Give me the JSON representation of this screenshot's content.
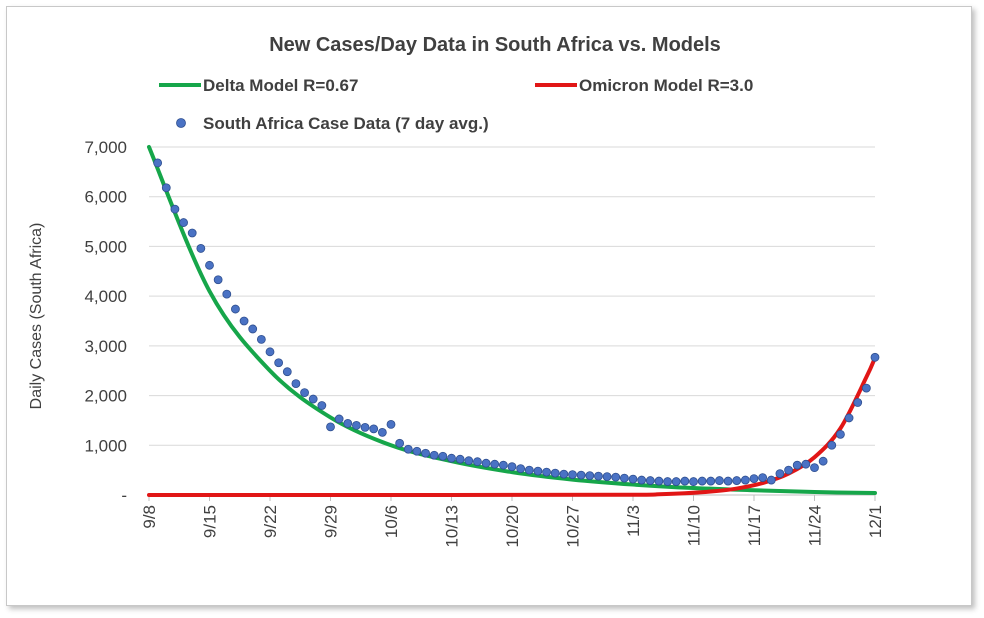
{
  "chart_data": {
    "type": "line",
    "title": "New Cases/Day Data in South Africa vs. Models",
    "xlabel": "",
    "ylabel": "Daily Cases (South Africa)",
    "ylim": [
      0,
      7000
    ],
    "yticks": [
      {
        "value": 0,
        "label": "-"
      },
      {
        "value": 1000,
        "label": "1,000"
      },
      {
        "value": 2000,
        "label": "2,000"
      },
      {
        "value": 3000,
        "label": "3,000"
      },
      {
        "value": 4000,
        "label": "4,000"
      },
      {
        "value": 5000,
        "label": "5,000"
      },
      {
        "value": 6000,
        "label": "6,000"
      },
      {
        "value": 7000,
        "label": "7,000"
      }
    ],
    "xlim": [
      "2021-09-08",
      "2021-12-01"
    ],
    "xticks": [
      {
        "value": "2021-09-08",
        "label": "9/8"
      },
      {
        "value": "2021-09-15",
        "label": "9/15"
      },
      {
        "value": "2021-09-22",
        "label": "9/22"
      },
      {
        "value": "2021-09-29",
        "label": "9/29"
      },
      {
        "value": "2021-10-06",
        "label": "10/6"
      },
      {
        "value": "2021-10-13",
        "label": "10/13"
      },
      {
        "value": "2021-10-20",
        "label": "10/20"
      },
      {
        "value": "2021-10-27",
        "label": "10/27"
      },
      {
        "value": "2021-11-03",
        "label": "11/3"
      },
      {
        "value": "2021-11-10",
        "label": "11/10"
      },
      {
        "value": "2021-11-17",
        "label": "11/17"
      },
      {
        "value": "2021-11-24",
        "label": "11/24"
      },
      {
        "value": "2021-12-01",
        "label": "12/1"
      }
    ],
    "grid": true,
    "legend_position": "top",
    "series": [
      {
        "name": "Delta Model R=0.67",
        "kind": "line",
        "color": "#16a64a",
        "x": [
          "2021-09-08",
          "2021-09-15",
          "2021-09-22",
          "2021-09-29",
          "2021-10-06",
          "2021-10-13",
          "2021-10-20",
          "2021-10-27",
          "2021-11-03",
          "2021-11-10",
          "2021-11-17",
          "2021-11-24",
          "2021-12-01"
        ],
        "y": [
          7000,
          4100,
          2500,
          1560,
          1000,
          680,
          460,
          310,
          210,
          140,
          95,
          60,
          40
        ]
      },
      {
        "name": "Omicron Model R=3.0",
        "kind": "line",
        "color": "#e11616",
        "x": [
          "2021-09-08",
          "2021-10-13",
          "2021-11-03",
          "2021-11-06",
          "2021-11-09",
          "2021-11-12",
          "2021-11-15",
          "2021-11-18",
          "2021-11-21",
          "2021-11-24",
          "2021-11-27",
          "2021-11-30",
          "2021-12-01"
        ],
        "y": [
          0,
          0,
          5,
          15,
          35,
          70,
          130,
          240,
          430,
          760,
          1340,
          2370,
          2760
        ]
      },
      {
        "name": "South Africa Case Data (7 day avg.)",
        "kind": "scatter",
        "color": "#4a72c4",
        "x": [
          "2021-09-09",
          "2021-09-10",
          "2021-09-11",
          "2021-09-12",
          "2021-09-13",
          "2021-09-14",
          "2021-09-15",
          "2021-09-16",
          "2021-09-17",
          "2021-09-18",
          "2021-09-19",
          "2021-09-20",
          "2021-09-21",
          "2021-09-22",
          "2021-09-23",
          "2021-09-24",
          "2021-09-25",
          "2021-09-26",
          "2021-09-27",
          "2021-09-28",
          "2021-09-29",
          "2021-09-30",
          "2021-10-01",
          "2021-10-02",
          "2021-10-03",
          "2021-10-04",
          "2021-10-05",
          "2021-10-06",
          "2021-10-07",
          "2021-10-08",
          "2021-10-09",
          "2021-10-10",
          "2021-10-11",
          "2021-10-12",
          "2021-10-13",
          "2021-10-14",
          "2021-10-15",
          "2021-10-16",
          "2021-10-17",
          "2021-10-18",
          "2021-10-19",
          "2021-10-20",
          "2021-10-21",
          "2021-10-22",
          "2021-10-23",
          "2021-10-24",
          "2021-10-25",
          "2021-10-26",
          "2021-10-27",
          "2021-10-28",
          "2021-10-29",
          "2021-10-30",
          "2021-10-31",
          "2021-11-01",
          "2021-11-02",
          "2021-11-03",
          "2021-11-04",
          "2021-11-05",
          "2021-11-06",
          "2021-11-07",
          "2021-11-08",
          "2021-11-09",
          "2021-11-10",
          "2021-11-11",
          "2021-11-12",
          "2021-11-13",
          "2021-11-14",
          "2021-11-15",
          "2021-11-16",
          "2021-11-17",
          "2021-11-18",
          "2021-11-19",
          "2021-11-20",
          "2021-11-21",
          "2021-11-22",
          "2021-11-23",
          "2021-11-24",
          "2021-11-25",
          "2021-11-26",
          "2021-11-27",
          "2021-11-28",
          "2021-11-29",
          "2021-11-30",
          "2021-12-01"
        ],
        "y": [
          6680,
          6180,
          5750,
          5480,
          5270,
          4960,
          4620,
          4330,
          4040,
          3740,
          3500,
          3340,
          3130,
          2880,
          2660,
          2480,
          2240,
          2060,
          1930,
          1800,
          1370,
          1530,
          1440,
          1400,
          1360,
          1330,
          1260,
          1420,
          1040,
          920,
          880,
          840,
          800,
          780,
          740,
          720,
          690,
          670,
          640,
          620,
          600,
          570,
          530,
          500,
          480,
          460,
          440,
          420,
          410,
          400,
          390,
          380,
          370,
          360,
          340,
          320,
          300,
          290,
          280,
          270,
          270,
          280,
          270,
          280,
          280,
          290,
          280,
          290,
          300,
          330,
          350,
          300,
          430,
          500,
          600,
          620,
          550,
          680,
          1000,
          1220,
          1550,
          1860,
          2150,
          2770
        ]
      }
    ]
  }
}
